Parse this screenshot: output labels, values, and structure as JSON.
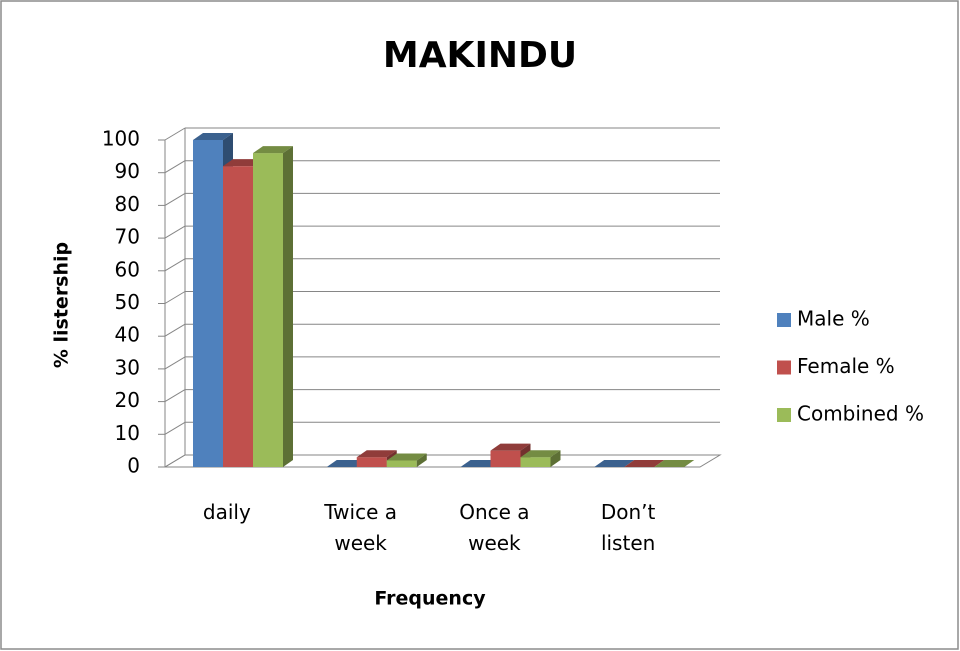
{
  "chart_data": {
    "type": "bar3d",
    "title": "MAKINDU",
    "x_label": "Frequency",
    "y_label": "% listership",
    "categories": [
      "daily",
      "Twice a week",
      "Once a week",
      "Don’t listen"
    ],
    "series": [
      {
        "name": "Male %",
        "color": "#4f81bd",
        "values": [
          100,
          0,
          0,
          0
        ]
      },
      {
        "name": "Female %",
        "color": "#c0504d",
        "values": [
          92,
          3,
          5,
          0
        ]
      },
      {
        "name": "Combined %",
        "color": "#9bbb59",
        "values": [
          96,
          2,
          3,
          0
        ]
      }
    ],
    "ylim": [
      0,
      100
    ],
    "yticks": [
      0,
      10,
      20,
      30,
      40,
      50,
      60,
      70,
      80,
      90,
      100
    ],
    "grid": true,
    "legend": "right"
  }
}
